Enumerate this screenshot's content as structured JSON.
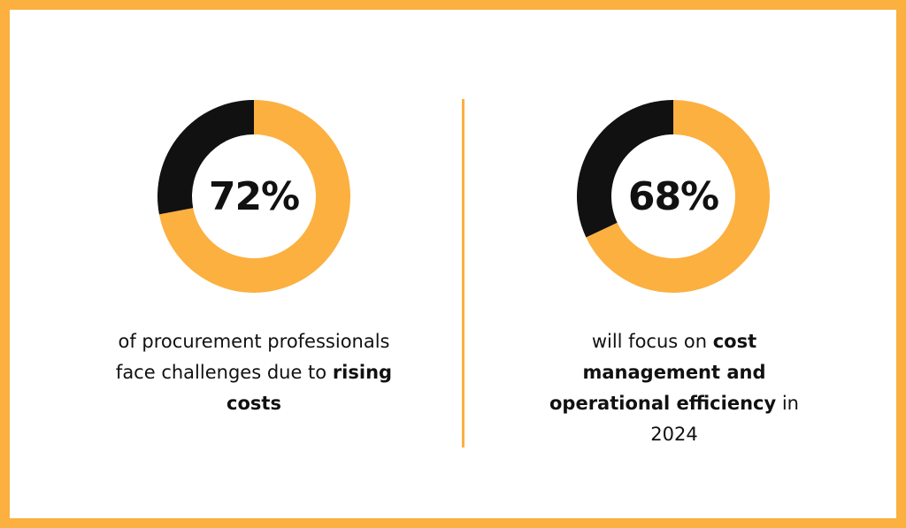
{
  "colors": {
    "accent": "#FBB040",
    "dark": "#111111",
    "background": "#FFFFFF"
  },
  "chart_data": [
    {
      "type": "pie",
      "style": "donut",
      "center_label": "72%",
      "values": [
        72,
        28
      ],
      "colors": [
        "#FBB040",
        "#111111"
      ],
      "caption": {
        "pre": "of procurement professionals face challenges due to ",
        "bold": "rising costs",
        "post": ""
      }
    },
    {
      "type": "pie",
      "style": "donut",
      "center_label": "68%",
      "values": [
        68,
        32
      ],
      "colors": [
        "#FBB040",
        "#111111"
      ],
      "caption": {
        "pre": "will focus on ",
        "bold": "cost management and operational efficiency",
        "post": " in 2024"
      }
    }
  ]
}
